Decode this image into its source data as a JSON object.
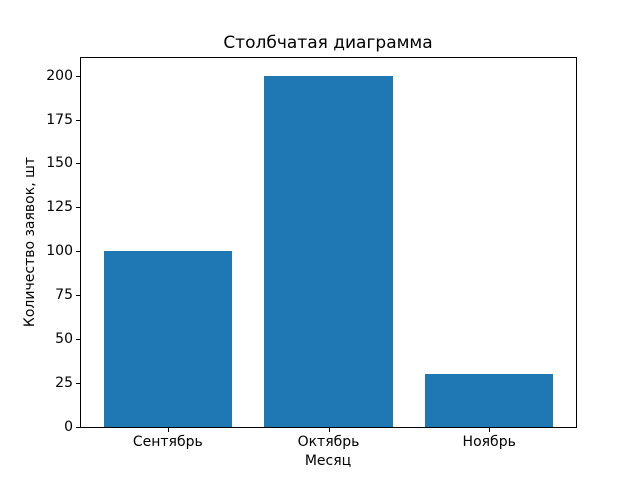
{
  "chart_data": {
    "type": "bar",
    "title": "Столбчатая диаграмма",
    "xlabel": "Месяц",
    "ylabel": "Количество заявок, шт",
    "categories": [
      "Сентябрь",
      "Октябрь",
      "Ноябрь"
    ],
    "values": [
      100,
      200,
      30
    ],
    "yticks": [
      0,
      25,
      50,
      75,
      100,
      125,
      150,
      175,
      200
    ],
    "ylim": [
      0,
      210
    ],
    "bar_color": "#1f77b4",
    "axis_color": "#000000",
    "background_color": "#ffffff",
    "grid": false,
    "legend": "none"
  }
}
